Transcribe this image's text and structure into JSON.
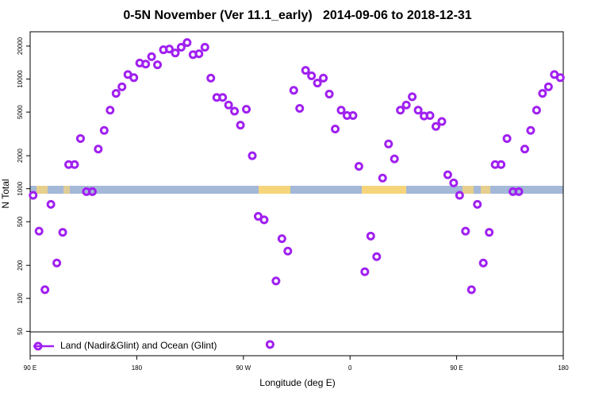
{
  "chart_data": {
    "type": "scatter",
    "title": "0-5N November (Ver 11.1_early)   2014-09-06 to 2018-12-31",
    "x_label": "Longitude (deg E)",
    "y_label": "N Total",
    "y_scale": "log",
    "legend": "bottom",
    "xlim": [
      90,
      540
    ],
    "xticks": [
      {
        "value": 90,
        "label": "90 E"
      },
      {
        "value": 180,
        "label": "180"
      },
      {
        "value": 270,
        "label": "90 W"
      },
      {
        "value": 360,
        "label": "0"
      },
      {
        "value": 450,
        "label": "90 E"
      },
      {
        "value": 540,
        "label": "180"
      }
    ],
    "ylim": [
      30,
      27000
    ],
    "yticks": [
      50,
      100,
      200,
      500,
      1000,
      2000,
      5000,
      10000,
      20000
    ],
    "series": [
      {
        "name": "Land (Nadir&Glint) and Ocean (Glint)",
        "color": "#a020f0",
        "x": [
          92.5,
          97.5,
          102.5,
          107.5,
          112.5,
          117.5,
          122.5,
          127.5,
          132.5,
          137.5,
          142.5,
          147.5,
          152.5,
          157.5,
          162.5,
          167.5,
          172.5,
          177.5,
          182.5,
          187.5,
          192.5,
          197.5,
          202.5,
          207.5,
          212.5,
          217.5,
          222.5,
          227.5,
          232.5,
          237.5,
          242.5,
          247.5,
          252.5,
          257.5,
          262.5,
          267.5,
          272.5,
          277.5,
          282.5,
          287.5,
          292.5,
          297.5,
          302.5,
          307.5,
          312.5,
          317.5,
          322.5,
          327.5,
          332.5,
          337.5,
          342.5,
          347.5,
          352.5,
          357.5,
          362.5,
          367.5,
          372.5,
          377.5,
          382.5,
          387.5,
          392.5,
          397.5,
          402.5,
          407.5,
          412.5,
          417.5,
          422.5,
          427.5,
          432.5,
          437.5,
          442.5,
          447.5,
          452.5,
          457.5,
          462.5,
          467.5,
          472.5,
          477.5,
          482.5,
          487.5,
          492.5,
          497.5,
          502.5,
          507.5,
          512.5,
          517.5,
          522.5,
          527.5,
          532.5,
          537.5
        ],
        "values": [
          870,
          410,
          120,
          720,
          210,
          400,
          1660,
          1660,
          2870,
          940,
          940,
          2300,
          3400,
          5200,
          7400,
          8500,
          11000,
          10300,
          14000,
          13700,
          16000,
          13500,
          18500,
          18800,
          17300,
          19500,
          21500,
          16700,
          17000,
          19500,
          10200,
          6800,
          6800,
          5800,
          5100,
          3800,
          5300,
          2000,
          560,
          520,
          38,
          144,
          350,
          270,
          7900,
          5400,
          12000,
          10700,
          9200,
          10200,
          7300,
          3500,
          5200,
          4650,
          4650,
          1600,
          175,
          370,
          240,
          1250,
          2560,
          1870,
          5200,
          5800,
          6900,
          5200,
          4600,
          4650,
          3700,
          4100,
          1340,
          1130,
          870,
          410,
          120,
          720,
          210,
          400,
          1660,
          1660,
          2870,
          940,
          940,
          2300,
          3400,
          5200,
          7400,
          8500,
          11000,
          10300
        ]
      }
    ]
  }
}
